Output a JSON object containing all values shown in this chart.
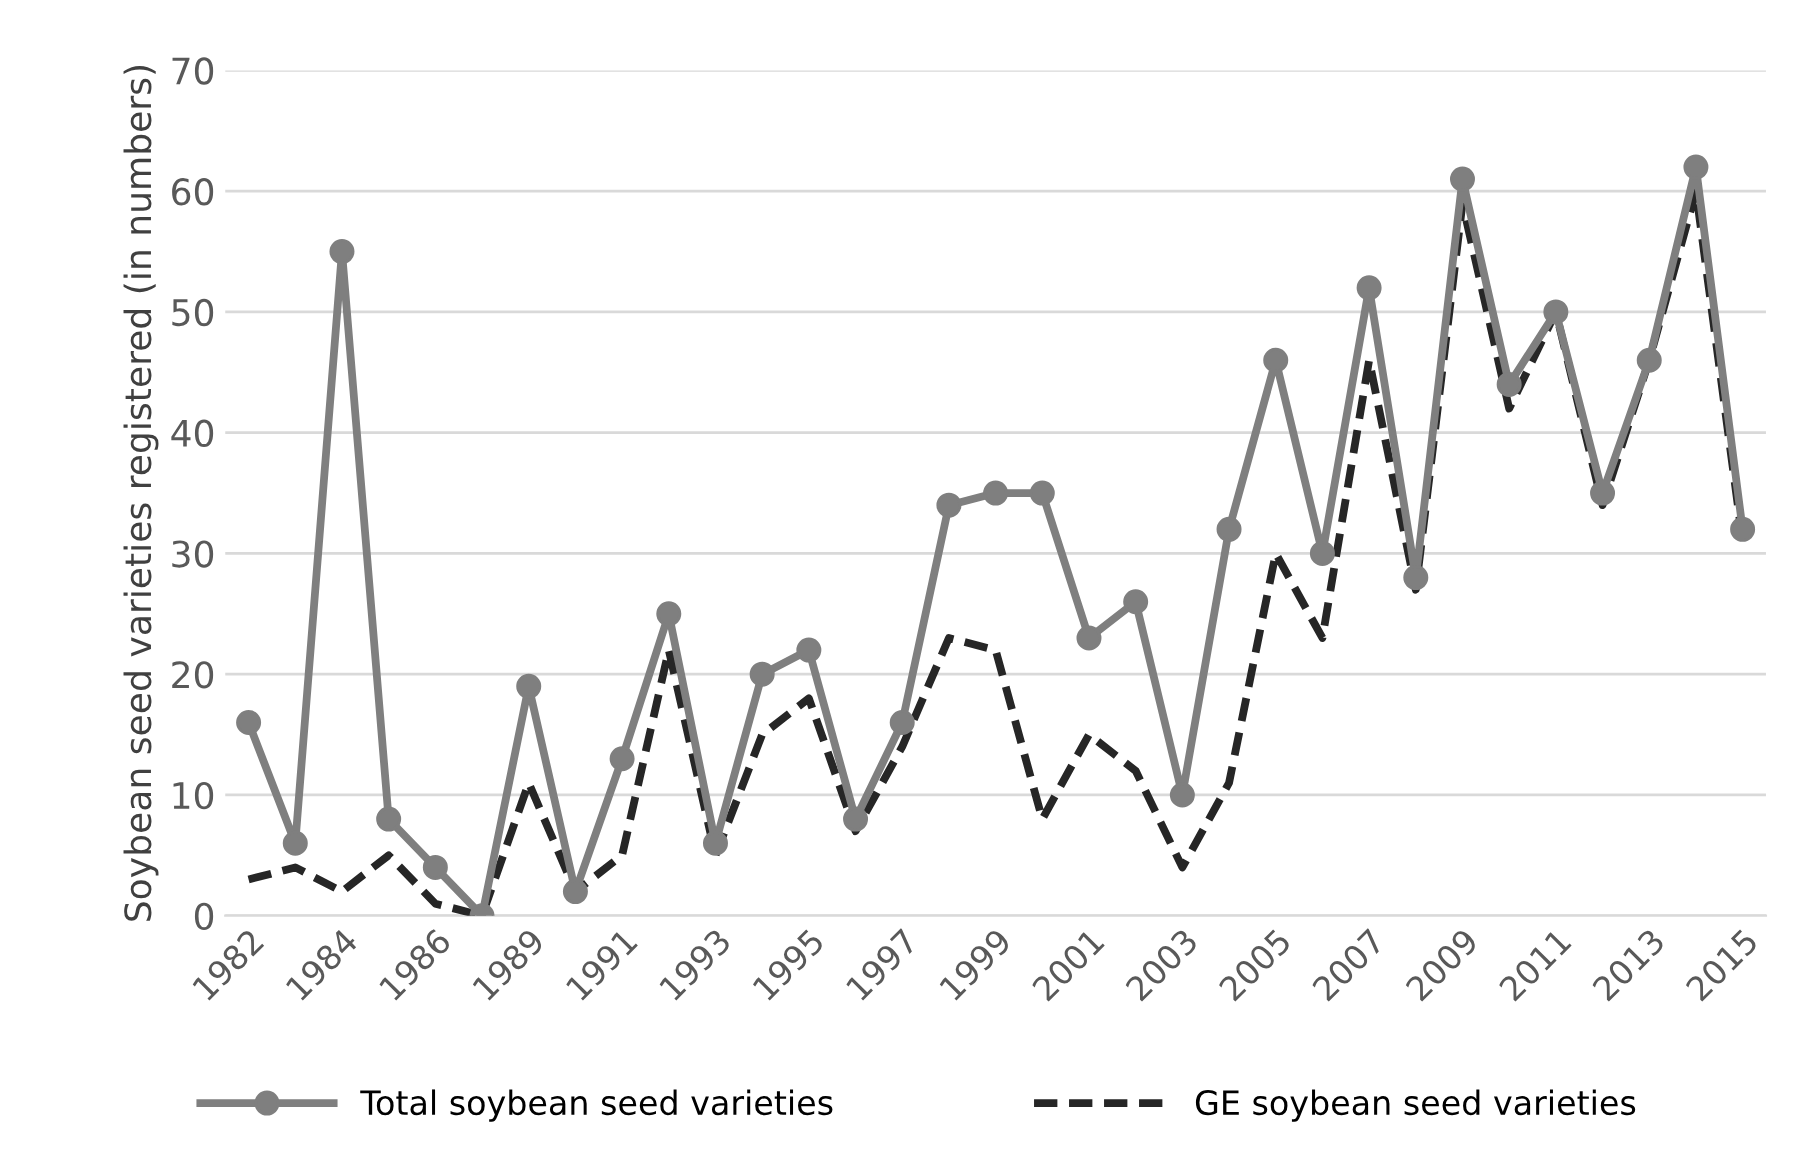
{
  "chart_data": {
    "type": "line",
    "ylabel": "Soybean seed varieties registered (in numbers)",
    "categories": [
      "1982",
      null,
      "1984",
      null,
      "1986",
      null,
      "1989",
      null,
      "1991",
      null,
      "1993",
      null,
      "1995",
      null,
      "1997",
      null,
      "1999",
      null,
      "2001",
      null,
      "2003",
      null,
      "2005",
      null,
      "2007",
      null,
      "2009",
      null,
      "2011",
      null,
      "2013",
      null,
      "2015"
    ],
    "series": [
      {
        "name": "Total soybean seed varieties",
        "color": "#7f7f7f",
        "marker": "circle",
        "line_style": "solid",
        "values": [
          16,
          6,
          55,
          8,
          4,
          0,
          19,
          2,
          13,
          25,
          6,
          20,
          22,
          8,
          16,
          34,
          35,
          35,
          23,
          26,
          10,
          32,
          46,
          30,
          52,
          28,
          61,
          44,
          50,
          35,
          46,
          62,
          32
        ]
      },
      {
        "name": "GE soybean seed varieties",
        "color": "#262626",
        "marker": "none",
        "line_style": "dashed",
        "values": [
          3,
          4,
          2,
          5,
          1,
          0,
          11,
          2,
          5,
          22,
          5,
          15,
          18,
          7,
          14,
          23,
          22,
          8,
          15,
          12,
          4,
          11,
          30,
          23,
          46,
          27,
          59,
          42,
          50,
          34,
          46,
          60,
          31
        ]
      }
    ],
    "ylim": [
      0,
      70
    ],
    "yticks": [
      0,
      10,
      20,
      30,
      40,
      50,
      60,
      70
    ],
    "grid": "y",
    "legend": "bottom"
  }
}
